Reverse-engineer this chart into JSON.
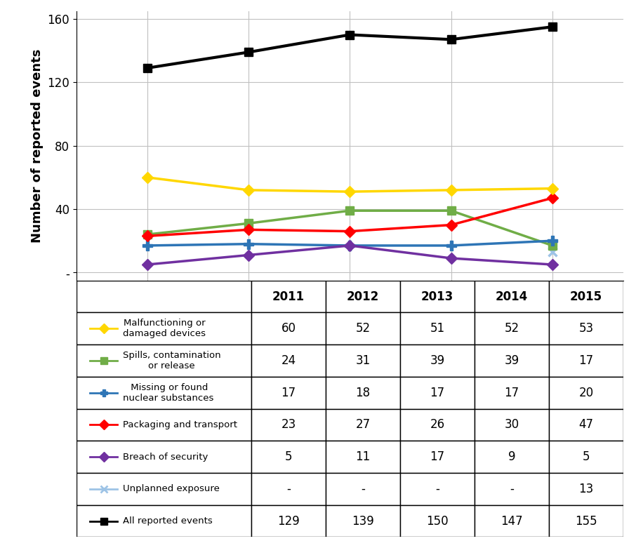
{
  "years": [
    2011,
    2012,
    2013,
    2014,
    2015
  ],
  "series": [
    {
      "label": "Malfunctioning or\ndamaged devices",
      "values": [
        60,
        52,
        51,
        52,
        53
      ],
      "color": "#FFD700",
      "marker": "D",
      "linewidth": 2.5,
      "zorder": 5
    },
    {
      "label": "Spills, contamination\nor release",
      "values": [
        24,
        31,
        39,
        39,
        17
      ],
      "color": "#70AD47",
      "marker": "s",
      "linewidth": 2.5,
      "zorder": 4
    },
    {
      "label": " Missing or found\nnuclear substances",
      "values": [
        17,
        18,
        17,
        17,
        20
      ],
      "color": "#2E75B6",
      "marker": "P",
      "linewidth": 2.5,
      "zorder": 4
    },
    {
      "label": "Packaging and transport",
      "values": [
        23,
        27,
        26,
        30,
        47
      ],
      "color": "#FF0000",
      "marker": "D",
      "linewidth": 2.5,
      "zorder": 4
    },
    {
      "label": "Breach of security",
      "values": [
        5,
        11,
        17,
        9,
        5
      ],
      "color": "#7030A0",
      "marker": "D",
      "linewidth": 2.5,
      "zorder": 4
    },
    {
      "label": "Unplanned exposure",
      "values": [
        null,
        null,
        null,
        null,
        13
      ],
      "color": "#9DC3E6",
      "marker": "x",
      "linewidth": 2.0,
      "zorder": 3
    },
    {
      "label": "All reported events",
      "values": [
        129,
        139,
        150,
        147,
        155
      ],
      "color": "#000000",
      "marker": "s",
      "linewidth": 3.0,
      "zorder": 6
    }
  ],
  "table_data": {
    "headers": [
      "",
      "2011",
      "2012",
      "2013",
      "2014",
      "2015"
    ],
    "rows": [
      [
        "Malfunctioning or\ndamaged devices",
        "60",
        "52",
        "51",
        "52",
        "53"
      ],
      [
        "Spills, contamination\nor release",
        "24",
        "31",
        "39",
        "39",
        "17"
      ],
      [
        " Missing or found\nnuclear substances",
        "17",
        "18",
        "17",
        "17",
        "20"
      ],
      [
        "Packaging and transport",
        "23",
        "27",
        "26",
        "30",
        "47"
      ],
      [
        "Breach of security",
        "5",
        "11",
        "17",
        "9",
        "5"
      ],
      [
        "Unplanned exposure",
        "-",
        "-",
        "-",
        "-",
        "13"
      ],
      [
        "All reported events",
        "129",
        "139",
        "150",
        "147",
        "155"
      ]
    ]
  },
  "ylabel": "Number of reported events",
  "ylim": [
    -5,
    165
  ],
  "yticks": [
    0,
    40,
    80,
    120,
    160
  ],
  "ytick_labels": [
    "-",
    "40",
    "80",
    "120",
    "160"
  ],
  "background_color": "#FFFFFF",
  "plot_area_color": "#FFFFFF",
  "grid_color": "#C0C0C0",
  "figsize": [
    9.06,
    7.81
  ],
  "dpi": 100
}
